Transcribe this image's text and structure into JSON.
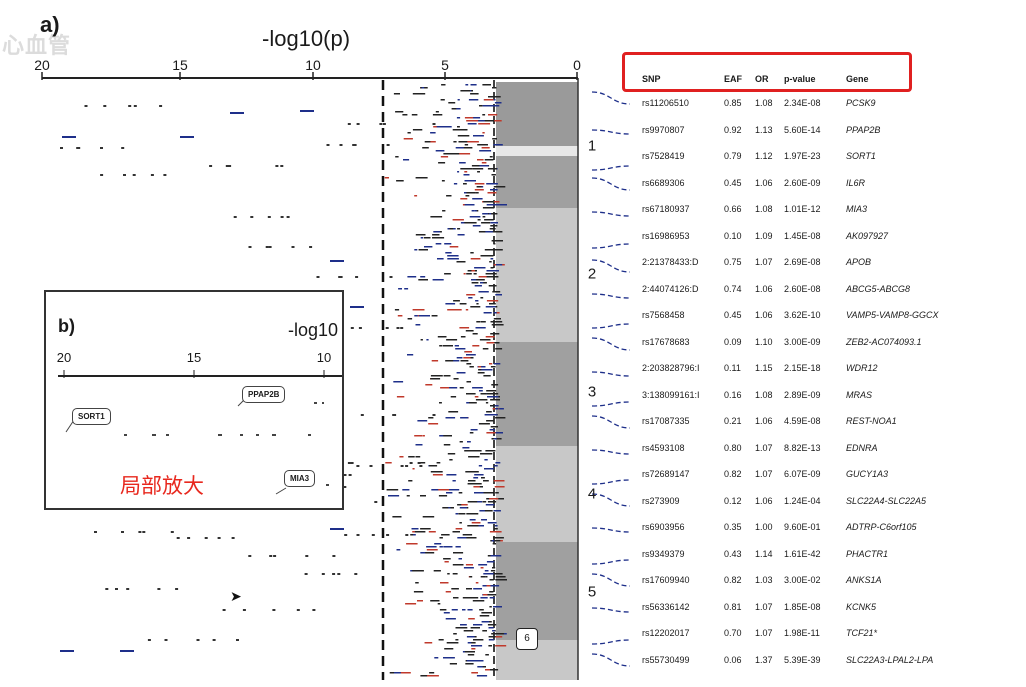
{
  "panel_a": {
    "label": "a)",
    "axis_title": "-log10(p)",
    "ticks": [
      "20",
      "15",
      "10",
      "5",
      "0"
    ],
    "regions": [
      "1",
      "2",
      "3",
      "4",
      "5"
    ],
    "marker_6": "6",
    "logo_text": "心血管"
  },
  "table": {
    "headers": {
      "snp": "SNP",
      "eaf": "EAF",
      "or": "OR",
      "p": "p-value",
      "gene": "Gene"
    },
    "rows": [
      {
        "snp": "rs11206510",
        "eaf": "0.85",
        "or": "1.08",
        "p": "2.34E-08",
        "gene": "PCSK9"
      },
      {
        "snp": "rs9970807",
        "eaf": "0.92",
        "or": "1.13",
        "p": "5.60E-14",
        "gene": "PPAP2B"
      },
      {
        "snp": "rs7528419",
        "eaf": "0.79",
        "or": "1.12",
        "p": "1.97E-23",
        "gene": "SORT1"
      },
      {
        "snp": "rs6689306",
        "eaf": "0.45",
        "or": "1.06",
        "p": "2.60E-09",
        "gene": "IL6R"
      },
      {
        "snp": "rs67180937",
        "eaf": "0.66",
        "or": "1.08",
        "p": "1.01E-12",
        "gene": "MIA3"
      },
      {
        "snp": "rs16986953",
        "eaf": "0.10",
        "or": "1.09",
        "p": "1.45E-08",
        "gene": "AK097927"
      },
      {
        "snp": "2:21378433:D",
        "eaf": "0.75",
        "or": "1.07",
        "p": "2.69E-08",
        "gene": "APOB"
      },
      {
        "snp": "2:44074126:D",
        "eaf": "0.74",
        "or": "1.06",
        "p": "2.60E-08",
        "gene": "ABCG5-ABCG8"
      },
      {
        "snp": "rs7568458",
        "eaf": "0.45",
        "or": "1.06",
        "p": "3.62E-10",
        "gene": "VAMP5-VAMP8-GGCX"
      },
      {
        "snp": "rs17678683",
        "eaf": "0.09",
        "or": "1.10",
        "p": "3.00E-09",
        "gene": "ZEB2-AC074093.1"
      },
      {
        "snp": "2:203828796:I",
        "eaf": "0.11",
        "or": "1.15",
        "p": "2.15E-18",
        "gene": "WDR12"
      },
      {
        "snp": "3:138099161:I",
        "eaf": "0.16",
        "or": "1.08",
        "p": "2.89E-09",
        "gene": "MRAS"
      },
      {
        "snp": "rs17087335",
        "eaf": "0.21",
        "or": "1.06",
        "p": "4.59E-08",
        "gene": "REST-NOA1"
      },
      {
        "snp": "rs4593108",
        "eaf": "0.80",
        "or": "1.07",
        "p": "8.82E-13",
        "gene": "EDNRA"
      },
      {
        "snp": "rs72689147",
        "eaf": "0.82",
        "or": "1.07",
        "p": "6.07E-09",
        "gene": "GUCY1A3"
      },
      {
        "snp": "rs273909",
        "eaf": "0.12",
        "or": "1.06",
        "p": "1.24E-04",
        "gene": "SLC22A4-SLC22A5"
      },
      {
        "snp": "rs6903956",
        "eaf": "0.35",
        "or": "1.00",
        "p": "9.60E-01",
        "gene": "ADTRP-C6orf105"
      },
      {
        "snp": "rs9349379",
        "eaf": "0.43",
        "or": "1.14",
        "p": "1.61E-42",
        "gene": "PHACTR1"
      },
      {
        "snp": "rs17609940",
        "eaf": "0.82",
        "or": "1.03",
        "p": "3.00E-02",
        "gene": "ANKS1A"
      },
      {
        "snp": "rs56336142",
        "eaf": "0.81",
        "or": "1.07",
        "p": "1.85E-08",
        "gene": "KCNK5"
      },
      {
        "snp": "rs12202017",
        "eaf": "0.70",
        "or": "1.07",
        "p": "1.98E-11",
        "gene": "TCF21*"
      },
      {
        "snp": "rs55730499",
        "eaf": "0.06",
        "or": "1.37",
        "p": "5.39E-39",
        "gene": "SLC22A3-LPAL2-LPA"
      }
    ]
  },
  "panel_b": {
    "label": "b)",
    "axis_title": "-log10",
    "ticks": [
      "20",
      "15",
      "10"
    ],
    "bubbles": [
      "SORT1",
      "PPAP2B",
      "MIA3"
    ]
  },
  "annotation_zoom": "局部放大",
  "colors": {
    "highlight_box": "#e02020",
    "annotation": "#e8281e",
    "dash_blue": "#1e2f8a",
    "band_dark": "#9a9a9a",
    "band_light": "#c8c8c8"
  }
}
